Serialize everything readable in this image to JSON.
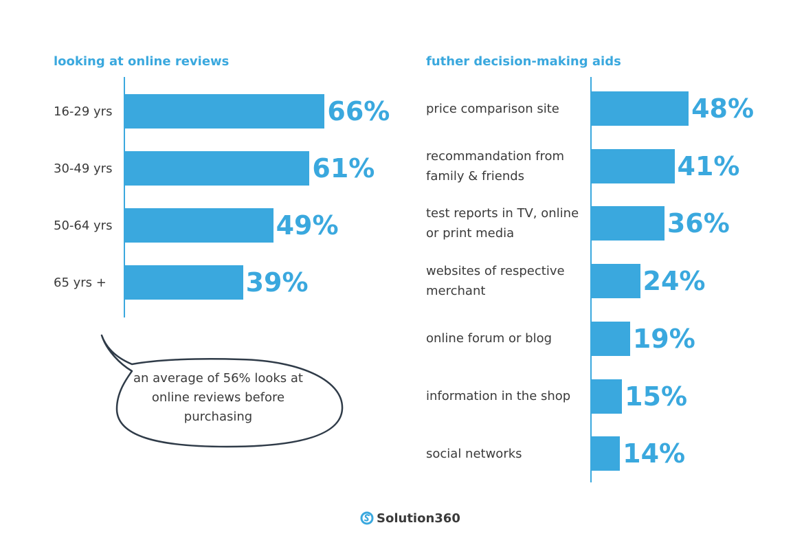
{
  "chart_data": [
    {
      "type": "bar",
      "title": "looking at online reviews",
      "categories": [
        "16-29 yrs",
        "30-49 yrs",
        "50-64 yrs",
        "65 yrs +"
      ],
      "values": [
        66,
        61,
        49,
        39
      ],
      "value_labels": [
        "66%",
        "61%",
        "49%",
        "39%"
      ],
      "xlabel": "",
      "ylabel": "",
      "orientation": "horizontal",
      "grid": false
    },
    {
      "type": "bar",
      "title": "futher decision-making aids",
      "categories": [
        "price comparison site",
        "recommandation from family & friends",
        "test reports in TV, online or print media",
        "websites of respective merchant",
        "online forum or blog",
        "information in the shop",
        "social networks"
      ],
      "values": [
        48,
        41,
        36,
        24,
        19,
        15,
        14
      ],
      "value_labels": [
        "48%",
        "41%",
        "36%",
        "24%",
        "19%",
        "15%",
        "14%"
      ],
      "xlabel": "",
      "ylabel": "",
      "orientation": "horizontal",
      "grid": false
    }
  ],
  "callout": {
    "text": "an average of 56% looks at online reviews before purchasing"
  },
  "logo": {
    "text": "Solution360",
    "icon": "solution360-logo-icon"
  },
  "colors": {
    "accent": "#3aa8de",
    "text": "#3a3a3a",
    "outline": "#2f3b48"
  }
}
